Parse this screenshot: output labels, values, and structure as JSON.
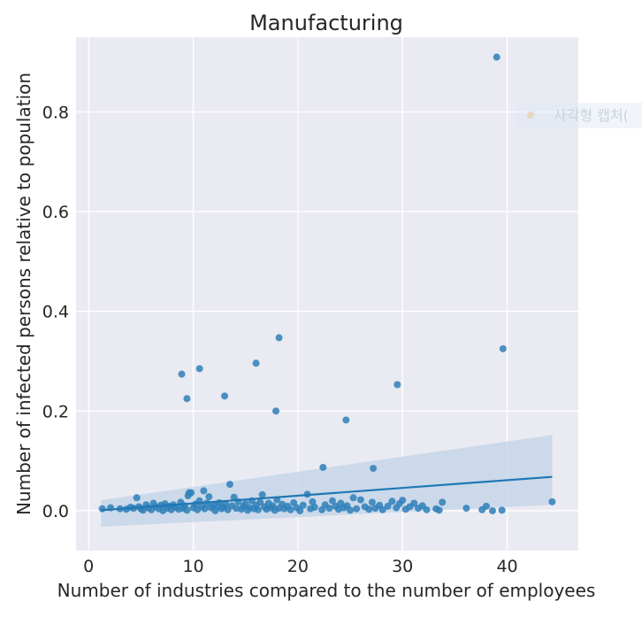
{
  "chart_data": {
    "type": "scatter",
    "title": "Manufacturing",
    "xlabel": "Number of industries compared to the number of employees",
    "ylabel": "Number of infected persons relative to population",
    "xlim": [
      -1.2,
      46.8
    ],
    "ylim": [
      -0.08,
      0.95
    ],
    "x_ticks": [
      0,
      10,
      20,
      30,
      40
    ],
    "x_tick_labels": [
      "0",
      "10",
      "20",
      "30",
      "40"
    ],
    "y_ticks": [
      0.0,
      0.2,
      0.4,
      0.6,
      0.8
    ],
    "y_tick_labels": [
      "0.0",
      "0.2",
      "0.4",
      "0.6",
      "0.8"
    ],
    "grid": true,
    "colors": {
      "background": "#eaeaf2",
      "grid": "#ffffff",
      "points": "#2f7fb8",
      "line": "#1f77b4",
      "band": "#c3d5e7"
    },
    "regression": {
      "x": [
        1.2,
        44.3
      ],
      "y": [
        0.001,
        0.068
      ],
      "ci_lower": [
        -0.032,
        0.012
      ],
      "ci_upper": [
        0.021,
        0.152
      ]
    },
    "points": [
      [
        1.3,
        0.004
      ],
      [
        2.1,
        0.006
      ],
      [
        3.0,
        0.004
      ],
      [
        3.6,
        0.003
      ],
      [
        4.0,
        0.007
      ],
      [
        4.3,
        0.005
      ],
      [
        4.6,
        0.026
      ],
      [
        4.8,
        0.008
      ],
      [
        5.0,
        0.004
      ],
      [
        5.2,
        0.001
      ],
      [
        5.5,
        0.012
      ],
      [
        5.7,
        0.006
      ],
      [
        6.0,
        0.002
      ],
      [
        6.2,
        0.015
      ],
      [
        6.4,
        0.008
      ],
      [
        6.7,
        0.004
      ],
      [
        6.9,
        0.011
      ],
      [
        7.1,
        0.0
      ],
      [
        7.3,
        0.014
      ],
      [
        7.5,
        0.005
      ],
      [
        7.7,
        0.009
      ],
      [
        7.9,
        0.002
      ],
      [
        8.1,
        0.012
      ],
      [
        8.3,
        0.007
      ],
      [
        8.6,
        0.003
      ],
      [
        8.8,
        0.017
      ],
      [
        9.0,
        0.005
      ],
      [
        9.2,
        0.01
      ],
      [
        9.4,
        0.001
      ],
      [
        9.5,
        0.03
      ],
      [
        9.6,
        0.036
      ],
      [
        9.8,
        0.036
      ],
      [
        10.0,
        0.006
      ],
      [
        10.2,
        0.013
      ],
      [
        10.4,
        0.002
      ],
      [
        10.6,
        0.02
      ],
      [
        10.8,
        0.008
      ],
      [
        11.0,
        0.04
      ],
      [
        11.1,
        0.004
      ],
      [
        11.3,
        0.015
      ],
      [
        11.5,
        0.028
      ],
      [
        11.7,
        0.006
      ],
      [
        11.9,
        0.011
      ],
      [
        12.1,
        0.0
      ],
      [
        12.3,
        0.009
      ],
      [
        12.5,
        0.016
      ],
      [
        12.7,
        0.004
      ],
      [
        12.9,
        0.007
      ],
      [
        13.1,
        0.013
      ],
      [
        13.3,
        0.002
      ],
      [
        13.5,
        0.053
      ],
      [
        13.7,
        0.01
      ],
      [
        13.9,
        0.027
      ],
      [
        14.1,
        0.005
      ],
      [
        14.3,
        0.018
      ],
      [
        14.6,
        0.003
      ],
      [
        14.8,
        0.009
      ],
      [
        15.0,
        0.014
      ],
      [
        15.2,
        0.001
      ],
      [
        15.4,
        0.006
      ],
      [
        15.6,
        0.02
      ],
      [
        15.8,
        0.004
      ],
      [
        16.0,
        0.011
      ],
      [
        16.2,
        0.002
      ],
      [
        16.4,
        0.017
      ],
      [
        16.6,
        0.032
      ],
      [
        16.8,
        0.008
      ],
      [
        17.0,
        0.003
      ],
      [
        17.2,
        0.015
      ],
      [
        17.4,
        0.006
      ],
      [
        17.6,
        0.01
      ],
      [
        17.8,
        0.001
      ],
      [
        18.0,
        0.022
      ],
      [
        18.2,
        0.005
      ],
      [
        18.5,
        0.013
      ],
      [
        18.7,
        0.004
      ],
      [
        19.0,
        0.009
      ],
      [
        19.3,
        0.002
      ],
      [
        19.6,
        0.016
      ],
      [
        19.9,
        0.006
      ],
      [
        20.2,
        0.0
      ],
      [
        20.5,
        0.011
      ],
      [
        20.9,
        0.033
      ],
      [
        21.2,
        0.004
      ],
      [
        21.4,
        0.018
      ],
      [
        21.6,
        0.007
      ],
      [
        22.3,
        0.002
      ],
      [
        22.6,
        0.012
      ],
      [
        23.0,
        0.005
      ],
      [
        23.3,
        0.02
      ],
      [
        23.6,
        0.009
      ],
      [
        23.9,
        0.003
      ],
      [
        24.1,
        0.015
      ],
      [
        24.4,
        0.006
      ],
      [
        24.7,
        0.01
      ],
      [
        25.0,
        0.001
      ],
      [
        25.3,
        0.026
      ],
      [
        25.6,
        0.004
      ],
      [
        26.0,
        0.022
      ],
      [
        26.4,
        0.008
      ],
      [
        26.8,
        0.003
      ],
      [
        27.1,
        0.017
      ],
      [
        27.4,
        0.005
      ],
      [
        27.8,
        0.011
      ],
      [
        28.1,
        0.002
      ],
      [
        28.6,
        0.009
      ],
      [
        29.0,
        0.019
      ],
      [
        29.4,
        0.006
      ],
      [
        29.7,
        0.014
      ],
      [
        30.0,
        0.021
      ],
      [
        30.3,
        0.003
      ],
      [
        30.7,
        0.008
      ],
      [
        31.1,
        0.015
      ],
      [
        31.5,
        0.005
      ],
      [
        31.9,
        0.01
      ],
      [
        32.3,
        0.002
      ],
      [
        33.2,
        0.004
      ],
      [
        33.5,
        0.001
      ],
      [
        33.8,
        0.017
      ],
      [
        36.1,
        0.005
      ],
      [
        37.6,
        0.002
      ],
      [
        38.0,
        0.009
      ],
      [
        38.6,
        0.0
      ],
      [
        39.5,
        0.001
      ],
      [
        44.3,
        0.018
      ],
      [
        8.9,
        0.274
      ],
      [
        9.4,
        0.225
      ],
      [
        10.6,
        0.285
      ],
      [
        13.0,
        0.23
      ],
      [
        16.0,
        0.296
      ],
      [
        17.9,
        0.2
      ],
      [
        18.2,
        0.347
      ],
      [
        24.6,
        0.182
      ],
      [
        29.5,
        0.253
      ],
      [
        22.4,
        0.087
      ],
      [
        27.2,
        0.085
      ],
      [
        39.0,
        0.91
      ],
      [
        39.6,
        0.325
      ]
    ]
  },
  "overlay": {
    "text": "사각형 캡처("
  }
}
